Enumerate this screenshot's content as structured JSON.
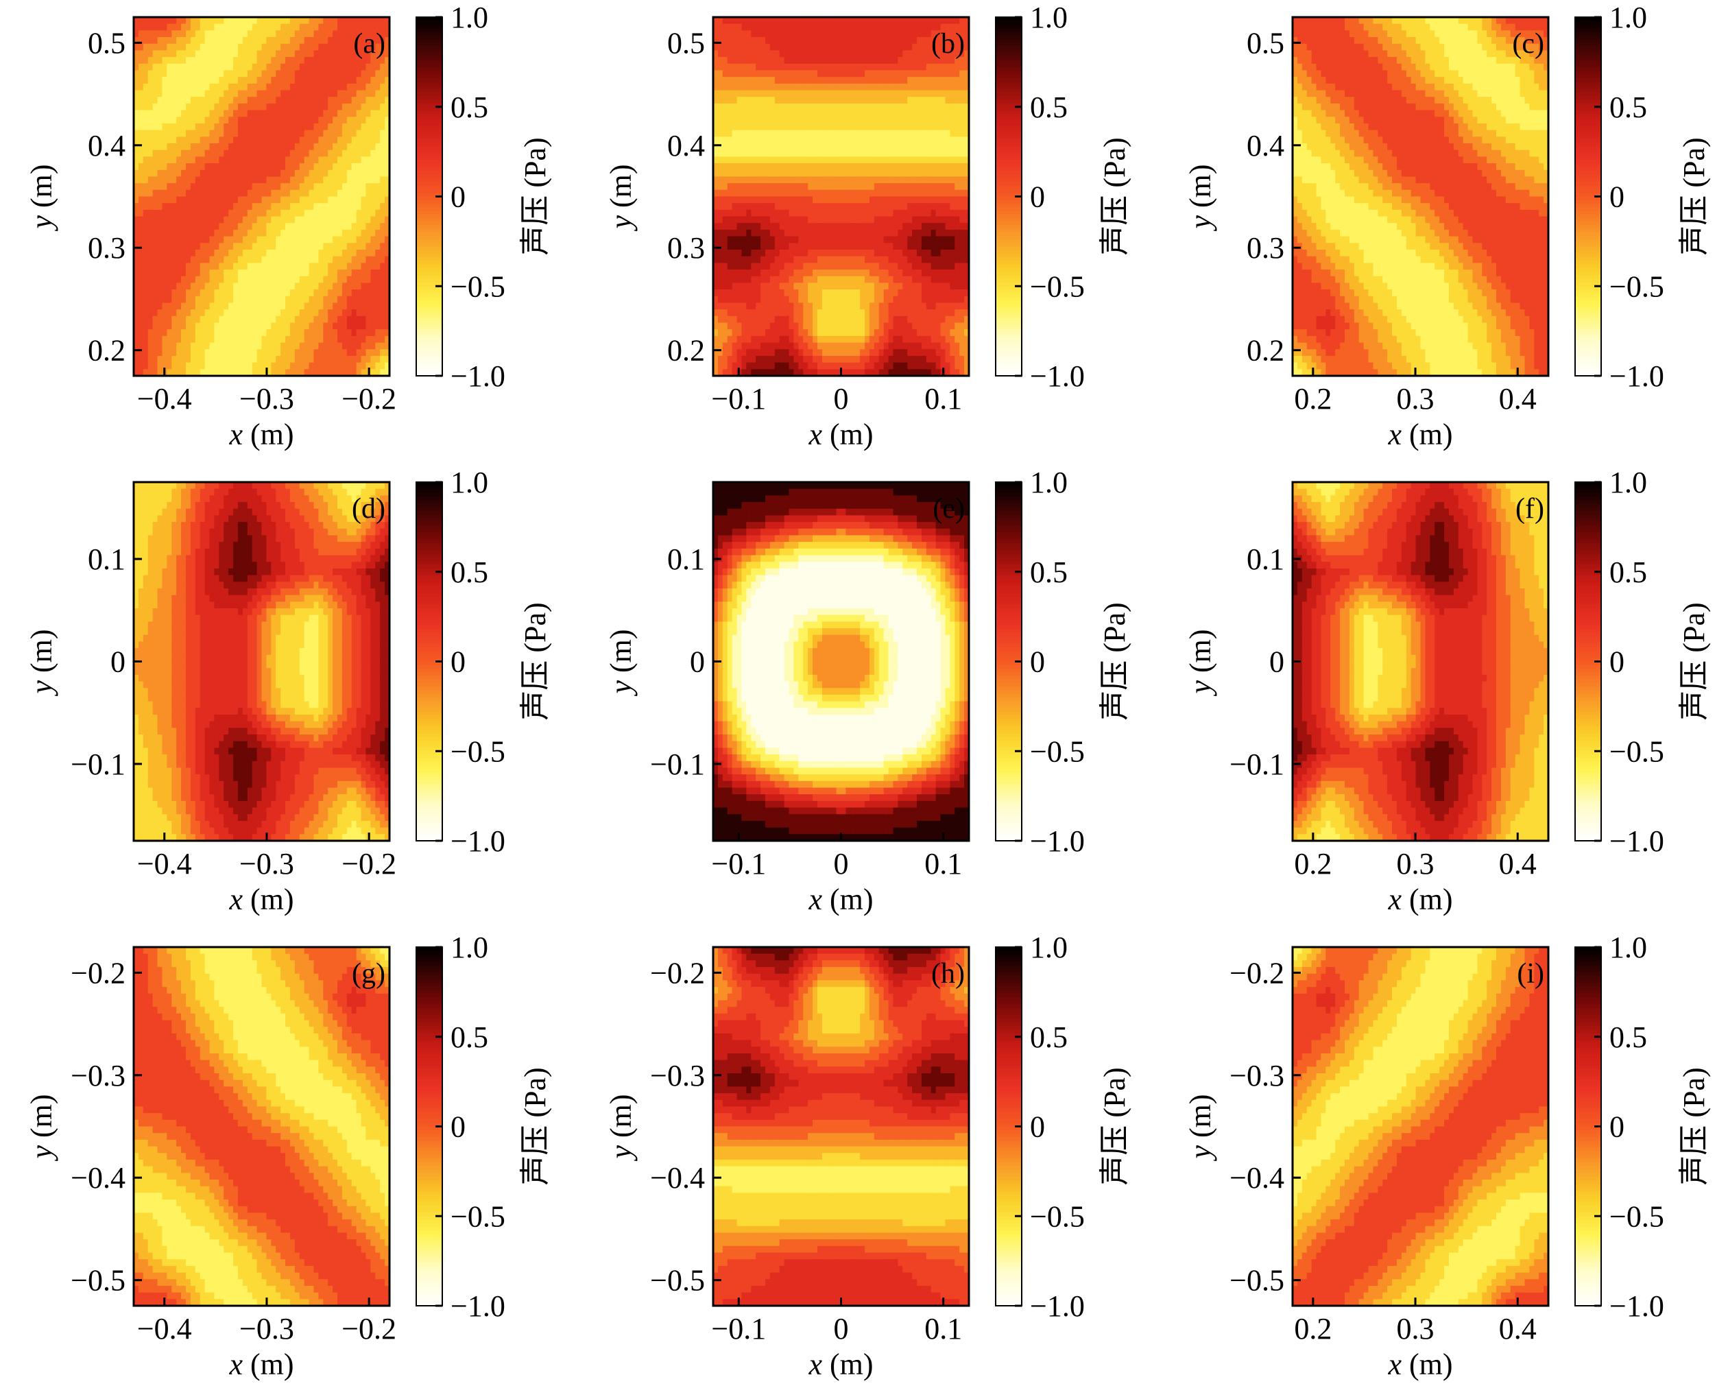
{
  "chart_data": [
    {
      "type": "heatmap",
      "panel": "(a)",
      "xlabel_var": "x",
      "xlabel_unit": " (m)",
      "ylabel_var": "y",
      "ylabel_unit": " (m)",
      "xlim": [
        -0.43,
        -0.18
      ],
      "ylim": [
        0.175,
        0.525
      ],
      "xticks": [
        -0.4,
        -0.3,
        -0.2
      ],
      "xtick_labels": [
        "−0.4",
        "−0.3",
        "−0.2"
      ],
      "yticks": [
        0.2,
        0.3,
        0.4,
        0.5
      ],
      "ytick_labels": [
        "0.2",
        "0.3",
        "0.4",
        "0.5"
      ],
      "colorbar": {
        "label": "声压 (Pa)",
        "range": [
          -1.0,
          1.0
        ],
        "ticks": [
          1.0,
          0.5,
          0,
          -0.5,
          -1.0
        ],
        "tick_labels": [
          "1.0",
          "0.5",
          "0",
          "−0.5",
          "−1.0"
        ]
      },
      "grid": [
        [
          0.2,
          0.2,
          -0.5,
          -0.6,
          -0.5,
          -0.2,
          0.2,
          0.2
        ],
        [
          -0.2,
          -0.6,
          -0.7,
          -0.5,
          -0.1,
          0.2,
          0.2,
          -0.2
        ],
        [
          -0.6,
          -0.6,
          -0.4,
          0.1,
          0.2,
          0.1,
          -0.3,
          -0.6
        ],
        [
          -0.4,
          -0.2,
          0.1,
          0.2,
          0.1,
          -0.3,
          -0.6,
          -0.6
        ],
        [
          0.1,
          0.2,
          0.2,
          -0.1,
          -0.5,
          -0.7,
          -0.6,
          -0.2
        ],
        [
          0.2,
          0.2,
          -0.2,
          -0.6,
          -0.7,
          -0.5,
          -0.1,
          0.2
        ],
        [
          0.2,
          -0.1,
          -0.5,
          -0.7,
          -0.5,
          -0.2,
          0.3,
          0.1
        ],
        [
          0.2,
          -0.3,
          -0.6,
          -0.6,
          -0.3,
          0.0,
          -0.1,
          -0.8
        ]
      ]
    },
    {
      "type": "heatmap",
      "panel": "(b)",
      "xlabel_var": "x",
      "xlabel_unit": " (m)",
      "ylabel_var": "y",
      "ylabel_unit": " (m)",
      "xlim": [
        -0.125,
        0.125
      ],
      "ylim": [
        0.175,
        0.525
      ],
      "xticks": [
        -0.1,
        0,
        0.1
      ],
      "xtick_labels": [
        "−0.1",
        "0",
        "0.1"
      ],
      "yticks": [
        0.2,
        0.3,
        0.4,
        0.5
      ],
      "ytick_labels": [
        "0.2",
        "0.3",
        "0.4",
        "0.5"
      ],
      "colorbar": {
        "label": "声压 (Pa)",
        "range": [
          -1.0,
          1.0
        ],
        "ticks": [
          1.0,
          0.5,
          0,
          -0.5,
          -1.0
        ],
        "tick_labels": [
          "1.0",
          "0.5",
          "0",
          "−0.5",
          "−1.0"
        ]
      },
      "grid": [
        [
          0.2,
          0.25,
          0.3,
          0.3,
          0.3,
          0.3,
          0.25,
          0.2
        ],
        [
          0.0,
          0.1,
          0.2,
          0.25,
          0.25,
          0.2,
          0.1,
          0.0
        ],
        [
          -0.45,
          -0.5,
          -0.5,
          -0.5,
          -0.5,
          -0.5,
          -0.5,
          -0.45
        ],
        [
          -0.6,
          -0.6,
          -0.6,
          -0.6,
          -0.6,
          -0.6,
          -0.6,
          -0.6
        ],
        [
          0.0,
          0.1,
          0.1,
          0.0,
          0.0,
          0.1,
          0.1,
          0.0
        ],
        [
          0.6,
          0.8,
          0.4,
          0.3,
          0.3,
          0.4,
          0.8,
          0.6
        ],
        [
          0.4,
          0.3,
          0.0,
          -0.4,
          -0.4,
          0.0,
          0.3,
          0.4
        ],
        [
          -0.3,
          0.1,
          0.3,
          -0.5,
          -0.5,
          0.3,
          0.1,
          -0.3
        ],
        [
          -0.2,
          0.7,
          0.8,
          0.3,
          0.3,
          0.8,
          0.7,
          -0.2
        ]
      ]
    },
    {
      "type": "heatmap",
      "panel": "(c)",
      "xlabel_var": "x",
      "xlabel_unit": " (m)",
      "ylabel_var": "y",
      "ylabel_unit": " (m)",
      "xlim": [
        0.18,
        0.43
      ],
      "ylim": [
        0.175,
        0.525
      ],
      "xticks": [
        0.2,
        0.3,
        0.4
      ],
      "xtick_labels": [
        "0.2",
        "0.3",
        "0.4"
      ],
      "yticks": [
        0.2,
        0.3,
        0.4,
        0.5
      ],
      "ytick_labels": [
        "0.2",
        "0.3",
        "0.4",
        "0.5"
      ],
      "colorbar": {
        "label": "声压 (Pa)",
        "range": [
          -1.0,
          1.0
        ],
        "ticks": [
          1.0,
          0.5,
          0,
          -0.5,
          -1.0
        ],
        "tick_labels": [
          "1.0",
          "0.5",
          "0",
          "−0.5",
          "−1.0"
        ]
      },
      "grid": [
        [
          0.2,
          0.2,
          -0.2,
          -0.5,
          -0.6,
          -0.5,
          0.2,
          0.2
        ],
        [
          -0.2,
          0.2,
          0.2,
          -0.1,
          -0.5,
          -0.7,
          -0.6,
          -0.2
        ],
        [
          -0.6,
          -0.3,
          0.1,
          0.2,
          0.1,
          -0.4,
          -0.6,
          -0.6
        ],
        [
          -0.6,
          -0.6,
          -0.3,
          0.1,
          0.2,
          0.1,
          -0.2,
          -0.4
        ],
        [
          -0.2,
          -0.6,
          -0.7,
          -0.5,
          -0.1,
          0.2,
          0.2,
          0.1
        ],
        [
          0.2,
          -0.1,
          -0.5,
          -0.7,
          -0.6,
          -0.2,
          0.2,
          0.2
        ],
        [
          0.1,
          0.3,
          -0.2,
          -0.5,
          -0.7,
          -0.5,
          -0.1,
          0.2
        ],
        [
          -0.8,
          -0.1,
          0.0,
          -0.3,
          -0.6,
          -0.6,
          -0.3,
          0.2
        ]
      ]
    },
    {
      "type": "heatmap",
      "panel": "(d)",
      "xlabel_var": "x",
      "xlabel_unit": " (m)",
      "ylabel_var": "y",
      "ylabel_unit": " (m)",
      "xlim": [
        -0.43,
        -0.18
      ],
      "ylim": [
        -0.175,
        0.175
      ],
      "xticks": [
        -0.4,
        -0.3,
        -0.2
      ],
      "xtick_labels": [
        "−0.4",
        "−0.3",
        "−0.2"
      ],
      "yticks": [
        -0.1,
        0,
        0.1
      ],
      "ytick_labels": [
        "−0.1",
        "0",
        "0.1"
      ],
      "colorbar": {
        "label": "声压 (Pa)",
        "range": [
          -1.0,
          1.0
        ],
        "ticks": [
          1.0,
          0.5,
          0,
          -0.5,
          -1.0
        ],
        "tick_labels": [
          "1.0",
          "0.5",
          "0",
          "−0.5",
          "−1.0"
        ]
      },
      "grid": [
        [
          -0.5,
          -0.5,
          0.1,
          0.4,
          0.1,
          -0.3,
          -0.7,
          -0.4
        ],
        [
          -0.5,
          -0.3,
          0.3,
          0.7,
          0.3,
          0.0,
          -0.4,
          0.3
        ],
        [
          -0.5,
          -0.2,
          0.4,
          0.8,
          0.4,
          0.1,
          0.3,
          0.8
        ],
        [
          -0.4,
          -0.1,
          0.3,
          0.3,
          -0.4,
          -0.6,
          0.1,
          0.6
        ],
        [
          -0.2,
          -0.1,
          0.3,
          0.3,
          -0.5,
          -0.6,
          0.1,
          0.6
        ],
        [
          -0.4,
          -0.1,
          0.3,
          0.3,
          -0.4,
          -0.6,
          0.1,
          0.6
        ],
        [
          -0.5,
          -0.2,
          0.4,
          0.8,
          0.4,
          0.1,
          0.3,
          0.8
        ],
        [
          -0.5,
          -0.3,
          0.3,
          0.7,
          0.3,
          0.0,
          -0.4,
          0.3
        ],
        [
          -0.5,
          -0.5,
          0.1,
          0.4,
          0.1,
          -0.3,
          -0.7,
          -0.4
        ]
      ]
    },
    {
      "type": "heatmap",
      "panel": "(e)",
      "xlabel_var": "x",
      "xlabel_unit": " (m)",
      "ylabel_var": "y",
      "ylabel_unit": " (m)",
      "xlim": [
        -0.125,
        0.125
      ],
      "ylim": [
        -0.175,
        0.175
      ],
      "xticks": [
        -0.1,
        0,
        0.1
      ],
      "xtick_labels": [
        "−0.1",
        "0",
        "0.1"
      ],
      "yticks": [
        -0.1,
        0,
        0.1
      ],
      "ytick_labels": [
        "−0.1",
        "0",
        "0.1"
      ],
      "colorbar": {
        "label": "声压 (Pa)",
        "range": [
          -1.0,
          1.0
        ],
        "ticks": [
          1.0,
          0.5,
          0,
          -0.5,
          -1.0
        ],
        "tick_labels": [
          "1.0",
          "0.5",
          "0",
          "−0.5",
          "−1.0"
        ]
      },
      "radial_profile": {
        "r": [
          0,
          0.025,
          0.04,
          0.055,
          0.075,
          0.095,
          0.115,
          0.135,
          0.155,
          0.2
        ],
        "v": [
          -0.2,
          -0.2,
          -0.6,
          -0.85,
          -1.0,
          -0.95,
          -0.5,
          0.2,
          0.75,
          0.9
        ]
      }
    },
    {
      "type": "heatmap",
      "panel": "(f)",
      "xlabel_var": "x",
      "xlabel_unit": " (m)",
      "ylabel_var": "y",
      "ylabel_unit": " (m)",
      "xlim": [
        0.18,
        0.43
      ],
      "ylim": [
        -0.175,
        0.175
      ],
      "xticks": [
        0.2,
        0.3,
        0.4
      ],
      "xtick_labels": [
        "0.2",
        "0.3",
        "0.4"
      ],
      "yticks": [
        -0.1,
        0,
        0.1
      ],
      "ytick_labels": [
        "−0.1",
        "0",
        "0.1"
      ],
      "colorbar": {
        "label": "声压 (Pa)",
        "range": [
          -1.0,
          1.0
        ],
        "ticks": [
          1.0,
          0.5,
          0,
          -0.5,
          -1.0
        ],
        "tick_labels": [
          "1.0",
          "0.5",
          "0",
          "−0.5",
          "−1.0"
        ]
      },
      "grid": [
        [
          -0.4,
          -0.7,
          -0.3,
          0.1,
          0.4,
          0.1,
          -0.5,
          -0.5
        ],
        [
          0.3,
          -0.4,
          0.0,
          0.3,
          0.7,
          0.3,
          -0.3,
          -0.5
        ],
        [
          0.8,
          0.3,
          0.1,
          0.4,
          0.8,
          0.4,
          -0.2,
          -0.5
        ],
        [
          0.6,
          0.1,
          -0.6,
          -0.4,
          0.3,
          0.3,
          -0.1,
          -0.4
        ],
        [
          0.6,
          0.1,
          -0.6,
          -0.5,
          0.3,
          0.3,
          -0.1,
          -0.2
        ],
        [
          0.6,
          0.1,
          -0.6,
          -0.4,
          0.3,
          0.3,
          -0.1,
          -0.4
        ],
        [
          0.8,
          0.3,
          0.1,
          0.4,
          0.8,
          0.4,
          -0.2,
          -0.5
        ],
        [
          0.3,
          -0.4,
          0.0,
          0.3,
          0.7,
          0.3,
          -0.3,
          -0.5
        ],
        [
          -0.4,
          -0.7,
          -0.3,
          0.1,
          0.4,
          0.1,
          -0.5,
          -0.5
        ]
      ]
    },
    {
      "type": "heatmap",
      "panel": "(g)",
      "xlabel_var": "x",
      "xlabel_unit": " (m)",
      "ylabel_var": "y",
      "ylabel_unit": " (m)",
      "xlim": [
        -0.43,
        -0.18
      ],
      "ylim": [
        -0.525,
        -0.175
      ],
      "xticks": [
        -0.4,
        -0.3,
        -0.2
      ],
      "xtick_labels": [
        "−0.4",
        "−0.3",
        "−0.2"
      ],
      "yticks": [
        -0.5,
        -0.4,
        -0.3,
        -0.2
      ],
      "ytick_labels": [
        "−0.5",
        "−0.4",
        "−0.3",
        "−0.2"
      ],
      "colorbar": {
        "label": "声压 (Pa)",
        "range": [
          -1.0,
          1.0
        ],
        "ticks": [
          1.0,
          0.5,
          0,
          -0.5,
          -1.0
        ],
        "tick_labels": [
          "1.0",
          "0.5",
          "0",
          "−0.5",
          "−1.0"
        ]
      },
      "grid": [
        [
          0.2,
          -0.3,
          -0.6,
          -0.6,
          -0.3,
          0.0,
          -0.1,
          -0.8
        ],
        [
          0.2,
          -0.1,
          -0.5,
          -0.7,
          -0.5,
          -0.2,
          0.3,
          0.1
        ],
        [
          0.2,
          0.2,
          -0.2,
          -0.6,
          -0.7,
          -0.5,
          -0.1,
          0.2
        ],
        [
          0.1,
          0.2,
          0.2,
          -0.1,
          -0.5,
          -0.7,
          -0.6,
          -0.2
        ],
        [
          -0.4,
          -0.2,
          0.1,
          0.2,
          0.1,
          -0.3,
          -0.6,
          -0.6
        ],
        [
          -0.6,
          -0.6,
          -0.4,
          0.1,
          0.2,
          0.1,
          -0.3,
          -0.6
        ],
        [
          -0.2,
          -0.6,
          -0.7,
          -0.5,
          -0.1,
          0.2,
          0.2,
          -0.2
        ],
        [
          0.2,
          0.2,
          -0.5,
          -0.6,
          -0.5,
          -0.2,
          0.2,
          0.2
        ]
      ]
    },
    {
      "type": "heatmap",
      "panel": "(h)",
      "xlabel_var": "x",
      "xlabel_unit": " (m)",
      "ylabel_var": "y",
      "ylabel_unit": " (m)",
      "xlim": [
        -0.125,
        0.125
      ],
      "ylim": [
        -0.525,
        -0.175
      ],
      "xticks": [
        -0.1,
        0,
        0.1
      ],
      "xtick_labels": [
        "−0.1",
        "0",
        "0.1"
      ],
      "yticks": [
        -0.5,
        -0.4,
        -0.3,
        -0.2
      ],
      "ytick_labels": [
        "−0.5",
        "−0.4",
        "−0.3",
        "−0.2"
      ],
      "colorbar": {
        "label": "声压 (Pa)",
        "range": [
          -1.0,
          1.0
        ],
        "ticks": [
          1.0,
          0.5,
          0,
          -0.5,
          -1.0
        ],
        "tick_labels": [
          "1.0",
          "0.5",
          "0",
          "−0.5",
          "−1.0"
        ]
      },
      "grid": [
        [
          -0.2,
          0.7,
          0.8,
          0.3,
          0.3,
          0.8,
          0.7,
          -0.2
        ],
        [
          -0.3,
          0.1,
          0.3,
          -0.5,
          -0.5,
          0.3,
          0.1,
          -0.3
        ],
        [
          0.4,
          0.3,
          0.0,
          -0.4,
          -0.4,
          0.0,
          0.3,
          0.4
        ],
        [
          0.6,
          0.8,
          0.4,
          0.3,
          0.3,
          0.4,
          0.8,
          0.6
        ],
        [
          0.0,
          0.1,
          0.1,
          0.0,
          0.0,
          0.1,
          0.1,
          0.0
        ],
        [
          -0.6,
          -0.6,
          -0.6,
          -0.6,
          -0.6,
          -0.6,
          -0.6,
          -0.6
        ],
        [
          -0.45,
          -0.5,
          -0.5,
          -0.5,
          -0.5,
          -0.5,
          -0.5,
          -0.45
        ],
        [
          0.0,
          0.1,
          0.2,
          0.25,
          0.25,
          0.2,
          0.1,
          0.0
        ],
        [
          0.2,
          0.25,
          0.3,
          0.3,
          0.3,
          0.3,
          0.25,
          0.2
        ]
      ]
    },
    {
      "type": "heatmap",
      "panel": "(i)",
      "xlabel_var": "x",
      "xlabel_unit": " (m)",
      "ylabel_var": "y",
      "ylabel_unit": " (m)",
      "xlim": [
        0.18,
        0.43
      ],
      "ylim": [
        -0.525,
        -0.175
      ],
      "xticks": [
        0.2,
        0.3,
        0.4
      ],
      "xtick_labels": [
        "0.2",
        "0.3",
        "0.4"
      ],
      "yticks": [
        -0.5,
        -0.4,
        -0.3,
        -0.2
      ],
      "ytick_labels": [
        "−0.5",
        "−0.4",
        "−0.3",
        "−0.2"
      ],
      "colorbar": {
        "label": "声压 (Pa)",
        "range": [
          -1.0,
          1.0
        ],
        "ticks": [
          1.0,
          0.5,
          0,
          -0.5,
          -1.0
        ],
        "tick_labels": [
          "1.0",
          "0.5",
          "0",
          "−0.5",
          "−1.0"
        ]
      },
      "grid": [
        [
          -0.8,
          -0.1,
          0.0,
          -0.3,
          -0.6,
          -0.6,
          -0.3,
          0.2
        ],
        [
          0.1,
          0.3,
          -0.2,
          -0.5,
          -0.7,
          -0.5,
          -0.1,
          0.2
        ],
        [
          0.2,
          -0.1,
          -0.5,
          -0.7,
          -0.6,
          -0.2,
          0.2,
          0.2
        ],
        [
          -0.2,
          -0.6,
          -0.7,
          -0.5,
          -0.1,
          0.2,
          0.2,
          0.1
        ],
        [
          -0.6,
          -0.6,
          -0.3,
          0.1,
          0.2,
          0.1,
          -0.2,
          -0.4
        ],
        [
          -0.6,
          -0.3,
          0.1,
          0.2,
          0.1,
          -0.4,
          -0.6,
          -0.6
        ],
        [
          -0.2,
          0.2,
          0.2,
          -0.1,
          -0.5,
          -0.7,
          -0.6,
          -0.2
        ],
        [
          0.2,
          0.2,
          -0.2,
          -0.5,
          -0.6,
          -0.5,
          0.2,
          0.2
        ]
      ]
    }
  ]
}
